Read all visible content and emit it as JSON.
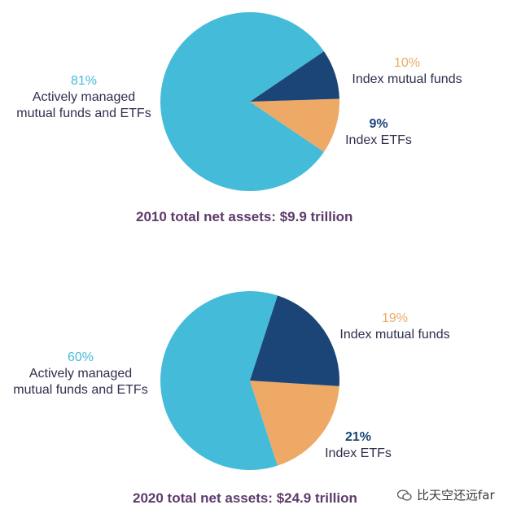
{
  "colors": {
    "active": "#44bcd9",
    "index_mutual": "#eea966",
    "index_etf": "#1b4577",
    "caption": "#5d3a6b",
    "label_text": "#2f2f4f"
  },
  "chart_data": [
    {
      "type": "pie",
      "title": "2010 total net assets: $9.9 trillion",
      "slices": [
        {
          "pct_label": "81%",
          "name_lines": [
            "Actively managed",
            "mutual funds and ETFs"
          ],
          "value": 81,
          "color": "#44bcd9"
        },
        {
          "pct_label": "10%",
          "name_lines": [
            "Index mutual funds"
          ],
          "value": 10,
          "color": "#eea966"
        },
        {
          "pct_label": "9%",
          "name_lines": [
            "Index ETFs"
          ],
          "value": 9,
          "color": "#1b4577"
        }
      ]
    },
    {
      "type": "pie",
      "title": "2020 total net assets: $24.9 trillion",
      "slices": [
        {
          "pct_label": "60%",
          "name_lines": [
            "Actively managed",
            "mutual funds and ETFs"
          ],
          "value": 60,
          "color": "#44bcd9"
        },
        {
          "pct_label": "19%",
          "name_lines": [
            "Index mutual funds"
          ],
          "value": 19,
          "color": "#eea966"
        },
        {
          "pct_label": "21%",
          "name_lines": [
            "Index ETFs"
          ],
          "value": 21,
          "color": "#1b4577"
        }
      ]
    }
  ],
  "watermark": {
    "text": "比天空还远far",
    "icon": "wechat-icon"
  }
}
